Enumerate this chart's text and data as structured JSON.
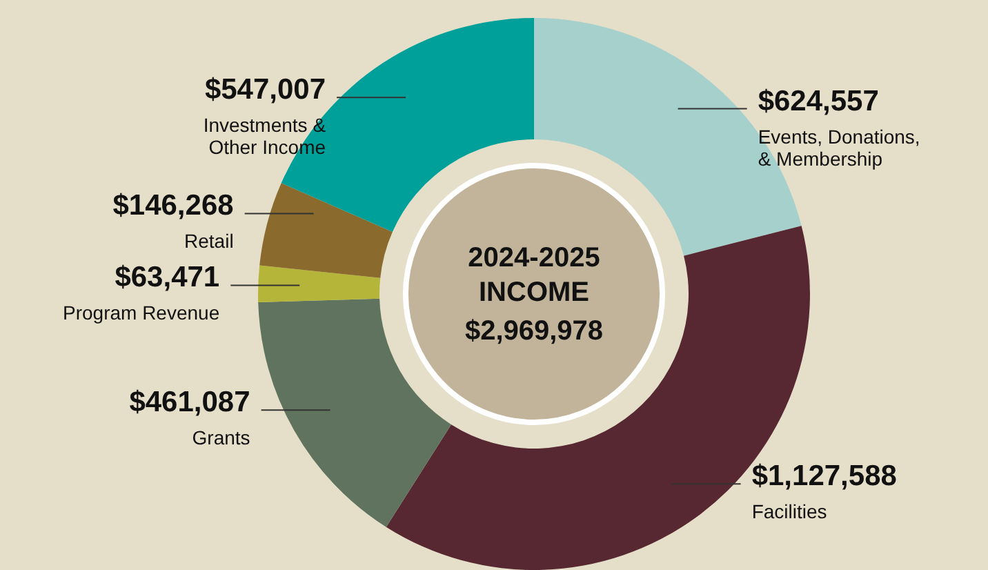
{
  "chart_data": {
    "type": "donut",
    "title": "2024-2025\nINCOME",
    "subtitle": "$2,969,978",
    "categories": [
      "Events, Donations,\n& Membership",
      "Facilities",
      "Grants",
      "Program Revenue",
      "Retail",
      "Investments &\nOther Income"
    ],
    "values": [
      624557,
      1127588,
      461087,
      63471,
      146268,
      547007
    ],
    "value_labels": [
      "$624,557",
      "$1,127,588",
      "$461,087",
      "$63,471",
      "$146,268",
      "$547,007"
    ],
    "colors": [
      "#a5d0cc",
      "#572732",
      "#5f735f",
      "#b5b53a",
      "#8b6a2e",
      "#00a09a"
    ]
  }
}
